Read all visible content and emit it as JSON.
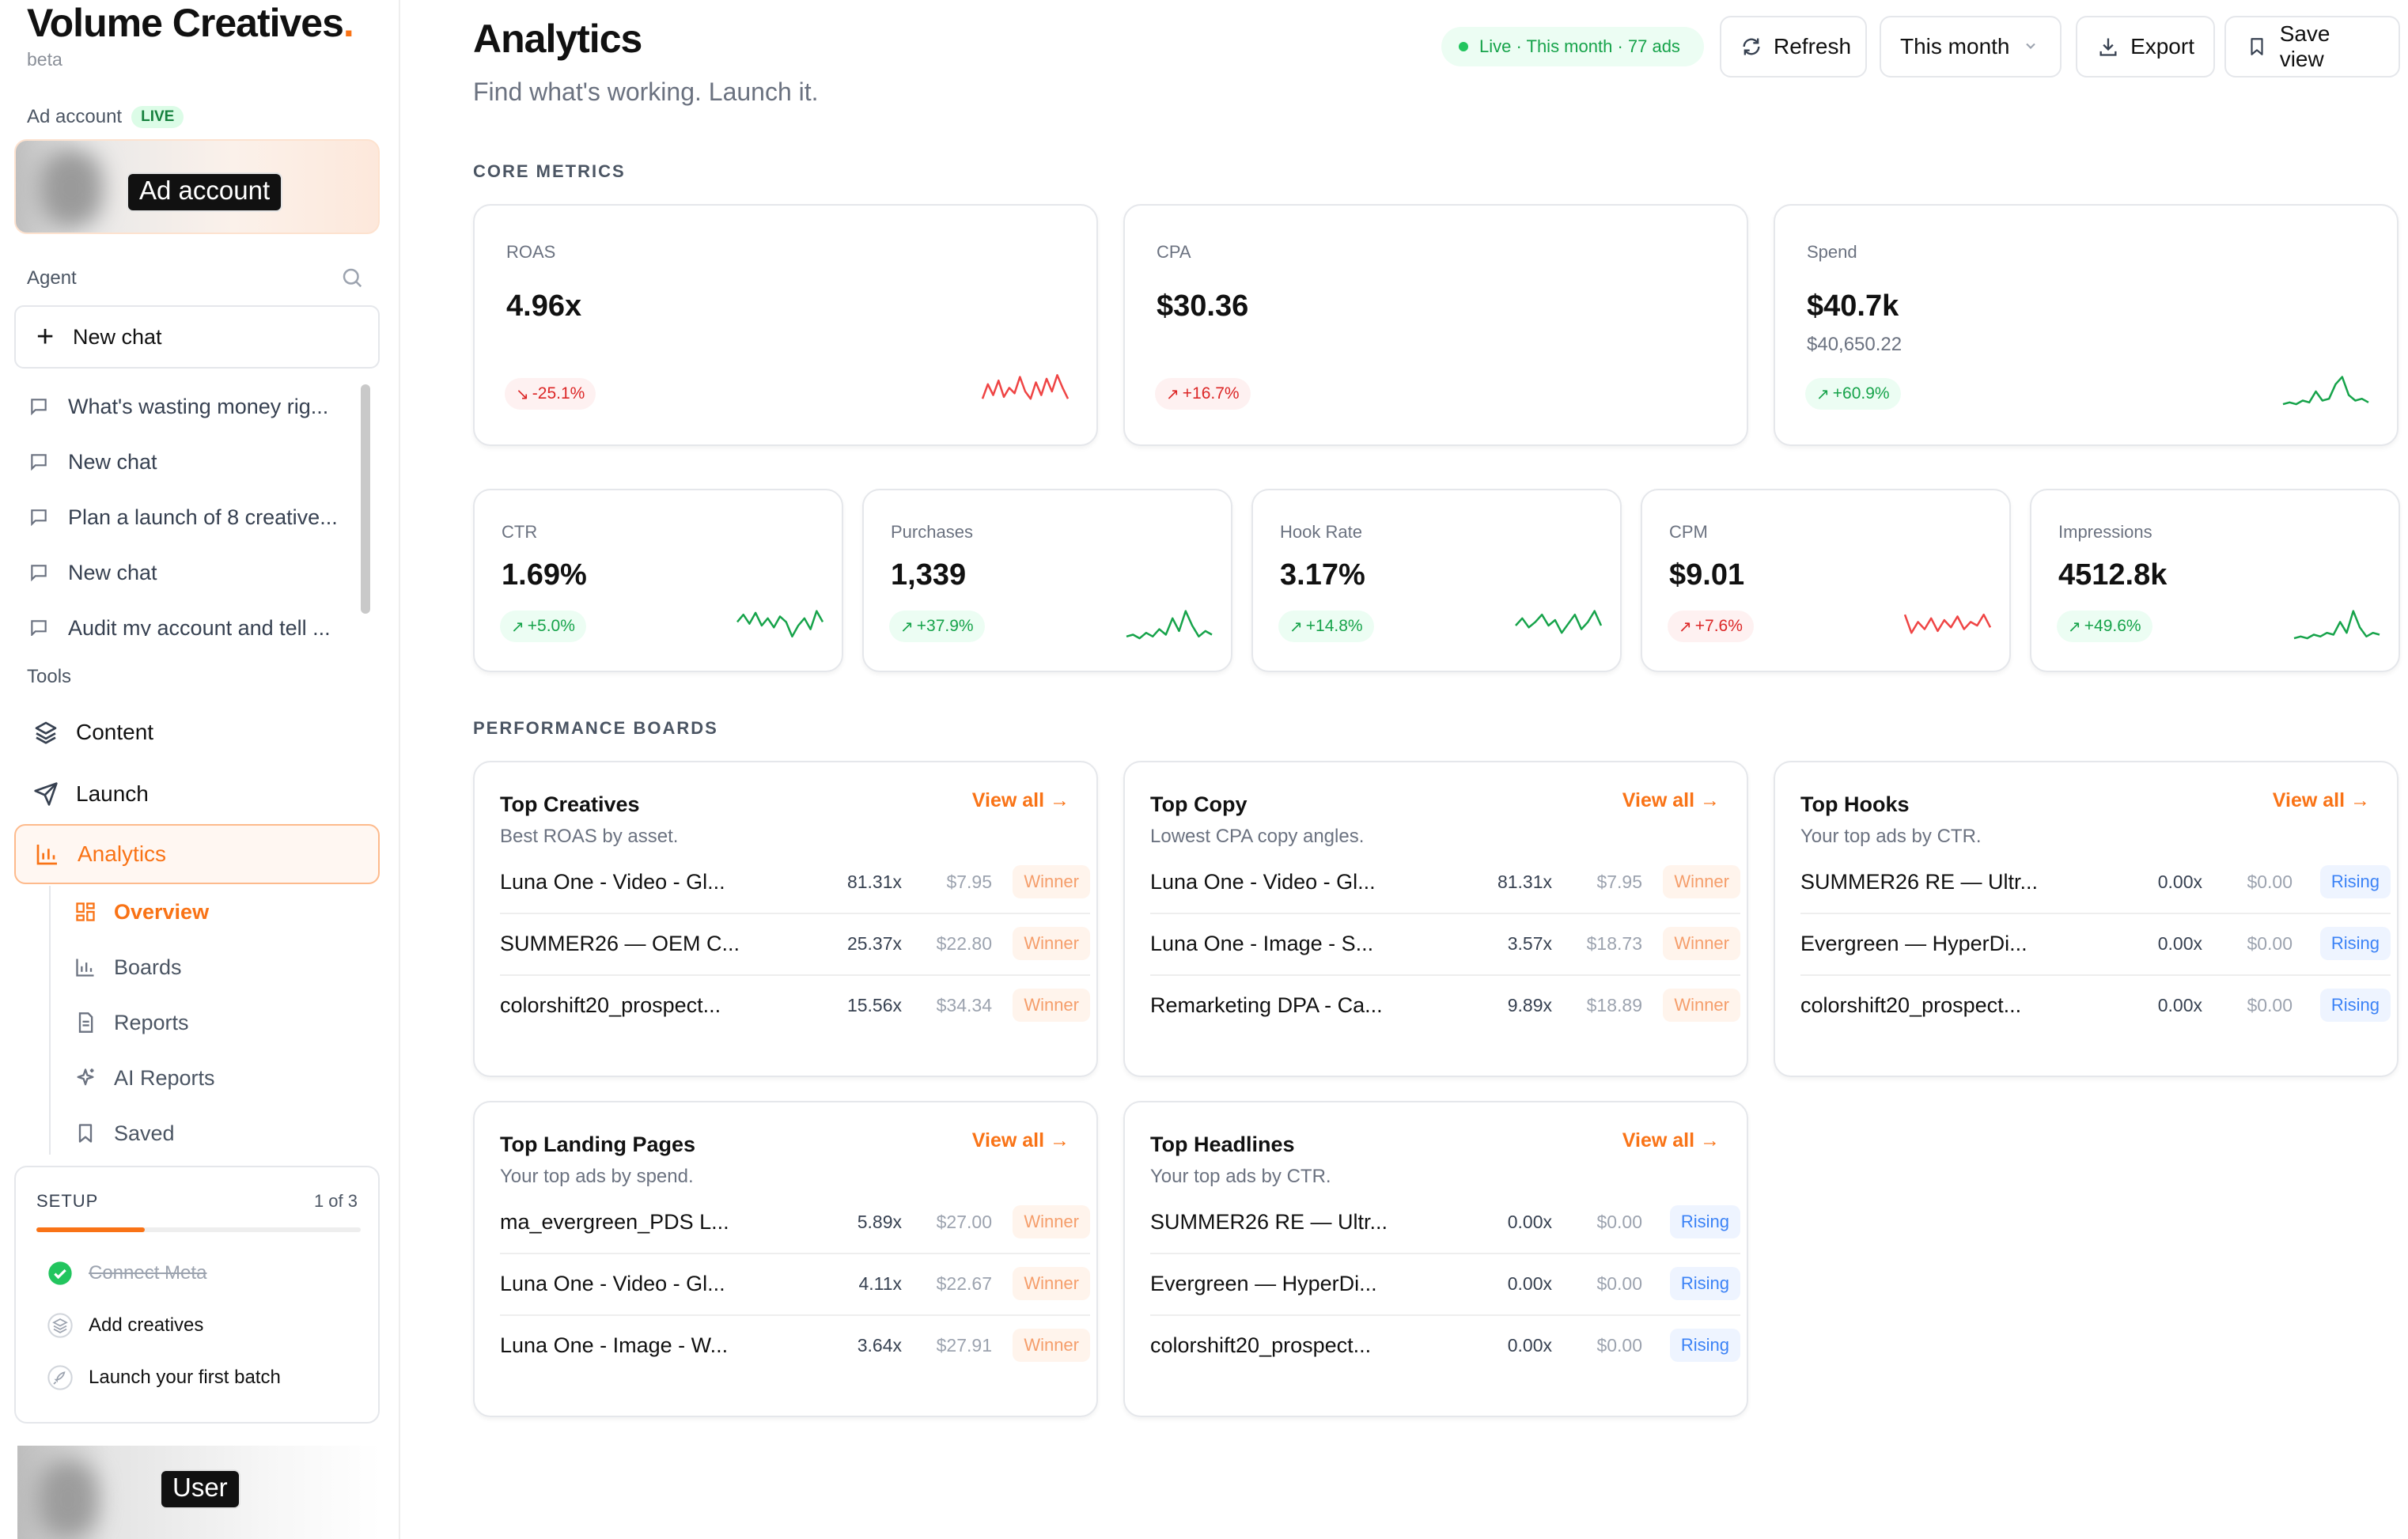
{
  "brand": {
    "name": "Volume Creatives",
    "dot": ".",
    "tag": "beta"
  },
  "sidebar": {
    "ad_account_label": "Ad account",
    "ad_account_badge": "LIVE",
    "ad_account_overlay": "Ad account",
    "agent_label": "Agent",
    "new_chat_label": "New chat",
    "chats": [
      "What's wasting money rig...",
      "New chat",
      "Plan a launch of 8 creative...",
      "New chat",
      "Audit my account and tell ..."
    ],
    "tools_label": "Tools",
    "tools": [
      {
        "label": "Content",
        "icon": "layers-icon"
      },
      {
        "label": "Launch",
        "icon": "send-icon"
      },
      {
        "label": "Analytics",
        "icon": "bar-chart-icon"
      }
    ],
    "analytics_sub": [
      {
        "label": "Overview",
        "icon": "grid-icon"
      },
      {
        "label": "Boards",
        "icon": "bar-chart-icon"
      },
      {
        "label": "Reports",
        "icon": "document-icon"
      },
      {
        "label": "AI Reports",
        "icon": "sparkle-icon"
      },
      {
        "label": "Saved",
        "icon": "bookmark-icon"
      }
    ],
    "setup": {
      "title": "SETUP",
      "count": "1 of 3",
      "progress": 0.333,
      "steps": [
        {
          "label": "Connect Meta",
          "done": true
        },
        {
          "label": "Add creatives",
          "done": false
        },
        {
          "label": "Launch your first batch",
          "done": false
        }
      ]
    },
    "user_overlay": "User"
  },
  "header": {
    "title": "Analytics",
    "subtitle": "Find what's working. Launch it.",
    "live_status": "Live · This month · 77 ads",
    "refresh_label": "Refresh",
    "period_label": "This month",
    "export_label": "Export",
    "save_view_label": "Save view"
  },
  "core_metrics_label": "CORE METRICS",
  "metrics_top": [
    {
      "label": "ROAS",
      "value": "4.96x",
      "sub": "",
      "delta": "-25.1%",
      "trend": "down",
      "spark": [
        0.3,
        0.7,
        0.4,
        0.8,
        0.35,
        0.6,
        0.45,
        0.9,
        0.5,
        0.3,
        0.75,
        0.4,
        0.85,
        0.5,
        0.95,
        0.6,
        0.3
      ]
    },
    {
      "label": "CPA",
      "value": "$30.36",
      "sub": "",
      "delta": "+16.7%",
      "trend": "up-bad",
      "spark": []
    },
    {
      "label": "Spend",
      "value": "$40.7k",
      "sub": "$40,650.22",
      "delta": "+60.9%",
      "trend": "up",
      "spark": [
        0.15,
        0.2,
        0.15,
        0.25,
        0.2,
        0.5,
        0.25,
        0.3,
        0.7,
        0.9,
        0.4,
        0.25,
        0.3,
        0.2
      ]
    }
  ],
  "metrics_bottom": [
    {
      "label": "CTR",
      "value": "1.69%",
      "delta": "+5.0%",
      "trend": "up",
      "spark": [
        0.6,
        0.8,
        0.55,
        0.85,
        0.5,
        0.7,
        0.45,
        0.75,
        0.6,
        0.2,
        0.5,
        0.7,
        0.4,
        0.9,
        0.6
      ]
    },
    {
      "label": "Purchases",
      "value": "1,339",
      "delta": "+37.9%",
      "trend": "up",
      "spark": [
        0.2,
        0.25,
        0.15,
        0.3,
        0.2,
        0.4,
        0.25,
        0.7,
        0.35,
        0.9,
        0.5,
        0.2,
        0.35,
        0.25
      ]
    },
    {
      "label": "Hook Rate",
      "value": "3.17%",
      "delta": "+14.8%",
      "trend": "up",
      "spark": [
        0.5,
        0.7,
        0.45,
        0.6,
        0.8,
        0.5,
        0.65,
        0.3,
        0.55,
        0.8,
        0.4,
        0.6,
        0.9,
        0.5
      ]
    },
    {
      "label": "CPM",
      "value": "$9.01",
      "delta": "+7.6%",
      "trend": "up-bad",
      "spark": [
        0.8,
        0.3,
        0.6,
        0.4,
        0.7,
        0.35,
        0.65,
        0.45,
        0.75,
        0.4,
        0.6,
        0.5,
        0.8,
        0.45
      ]
    },
    {
      "label": "Impressions",
      "value": "4512.8k",
      "delta": "+49.6%",
      "trend": "up",
      "spark": [
        0.15,
        0.2,
        0.15,
        0.25,
        0.2,
        0.3,
        0.25,
        0.6,
        0.3,
        0.9,
        0.45,
        0.2,
        0.3,
        0.25
      ]
    }
  ],
  "boards_label": "PERFORMANCE BOARDS",
  "boards": [
    {
      "title": "Top Creatives",
      "subtitle": "Best ROAS by asset.",
      "view_all": "View all",
      "rows": [
        {
          "name": "Luna One - Video - Gl...",
          "roas": "81.31x",
          "cpa": "$7.95",
          "tag": "Winner"
        },
        {
          "name": "SUMMER26 — OEM C...",
          "roas": "25.37x",
          "cpa": "$22.80",
          "tag": "Winner"
        },
        {
          "name": "colorshift20_prospect...",
          "roas": "15.56x",
          "cpa": "$34.34",
          "tag": "Winner"
        }
      ]
    },
    {
      "title": "Top Copy",
      "subtitle": "Lowest CPA copy angles.",
      "view_all": "View all",
      "rows": [
        {
          "name": "Luna One - Video - Gl...",
          "roas": "81.31x",
          "cpa": "$7.95",
          "tag": "Winner"
        },
        {
          "name": "Luna One - Image - S...",
          "roas": "3.57x",
          "cpa": "$18.73",
          "tag": "Winner"
        },
        {
          "name": "Remarketing DPA - Ca...",
          "roas": "9.89x",
          "cpa": "$18.89",
          "tag": "Winner"
        }
      ]
    },
    {
      "title": "Top Hooks",
      "subtitle": "Your top ads by CTR.",
      "view_all": "View all",
      "rows": [
        {
          "name": "SUMMER26 RE — Ultr...",
          "roas": "0.00x",
          "cpa": "$0.00",
          "tag": "Rising"
        },
        {
          "name": "Evergreen — HyperDi...",
          "roas": "0.00x",
          "cpa": "$0.00",
          "tag": "Rising"
        },
        {
          "name": "colorshift20_prospect...",
          "roas": "0.00x",
          "cpa": "$0.00",
          "tag": "Rising"
        }
      ]
    },
    {
      "title": "Top Landing Pages",
      "subtitle": "Your top ads by spend.",
      "view_all": "View all",
      "rows": [
        {
          "name": "ma_evergreen_PDS L...",
          "roas": "5.89x",
          "cpa": "$27.00",
          "tag": "Winner"
        },
        {
          "name": "Luna One - Video - Gl...",
          "roas": "4.11x",
          "cpa": "$22.67",
          "tag": "Winner"
        },
        {
          "name": "Luna One - Image - W...",
          "roas": "3.64x",
          "cpa": "$27.91",
          "tag": "Winner"
        }
      ]
    },
    {
      "title": "Top Headlines",
      "subtitle": "Your top ads by CTR.",
      "view_all": "View all",
      "rows": [
        {
          "name": "SUMMER26 RE — Ultr...",
          "roas": "0.00x",
          "cpa": "$0.00",
          "tag": "Rising"
        },
        {
          "name": "Evergreen — HyperDi...",
          "roas": "0.00x",
          "cpa": "$0.00",
          "tag": "Rising"
        },
        {
          "name": "colorshift20_prospect...",
          "roas": "0.00x",
          "cpa": "$0.00",
          "tag": "Rising"
        }
      ]
    }
  ],
  "colors": {
    "accent": "#f97316",
    "good": "#16a34a",
    "bad": "#dc2626",
    "rising": "#3b82f6"
  }
}
